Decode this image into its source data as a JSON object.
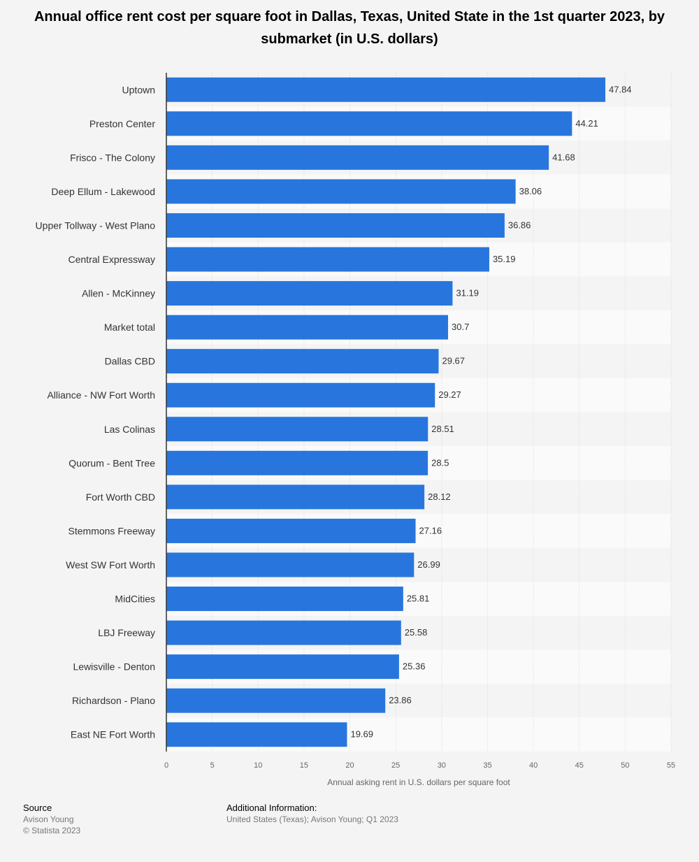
{
  "title": "Annual office rent cost per square foot in Dallas, Texas, United State in the 1st quarter 2023, by submarket (in U.S. dollars)",
  "footer": {
    "source_heading": "Source",
    "source_lines": [
      "Avison Young",
      "© Statista 2023"
    ],
    "additional_heading": "Additional Information:",
    "additional_text": "United States (Texas); Avison Young; Q1 2023"
  },
  "colors": {
    "bar": "#2876dd",
    "background": "#f4f4f4",
    "band": "#fafafa"
  },
  "chart_data": {
    "type": "bar",
    "orientation": "horizontal",
    "categories": [
      "Uptown",
      "Preston Center",
      "Frisco - The Colony",
      "Deep Ellum - Lakewood",
      "Upper Tollway - West Plano",
      "Central Expressway",
      "Allen - McKinney",
      "Market total",
      "Dallas CBD",
      "Alliance - NW Fort Worth",
      "Las Colinas",
      "Quorum - Bent Tree",
      "Fort Worth CBD",
      "Stemmons Freeway",
      "West SW Fort Worth",
      "MidCities",
      "LBJ Freeway",
      "Lewisville - Denton",
      "Richardson - Plano",
      "East NE Fort Worth"
    ],
    "values": [
      47.84,
      44.21,
      41.68,
      38.06,
      36.86,
      35.19,
      31.19,
      30.7,
      29.67,
      29.27,
      28.51,
      28.5,
      28.12,
      27.16,
      26.99,
      25.81,
      25.58,
      25.36,
      23.86,
      19.69
    ],
    "value_labels": [
      "47.84",
      "44.21",
      "41.68",
      "38.06",
      "36.86",
      "35.19",
      "31.19",
      "30.7",
      "29.67",
      "29.27",
      "28.51",
      "28.5",
      "28.12",
      "27.16",
      "26.99",
      "25.81",
      "25.58",
      "25.36",
      "23.86",
      "19.69"
    ],
    "xlabel": "Annual asking rent in U.S. dollars per square foot",
    "xlim": [
      0,
      55
    ],
    "xticks": [
      0,
      5,
      10,
      15,
      20,
      25,
      30,
      35,
      40,
      45,
      50,
      55
    ],
    "grid": true
  }
}
